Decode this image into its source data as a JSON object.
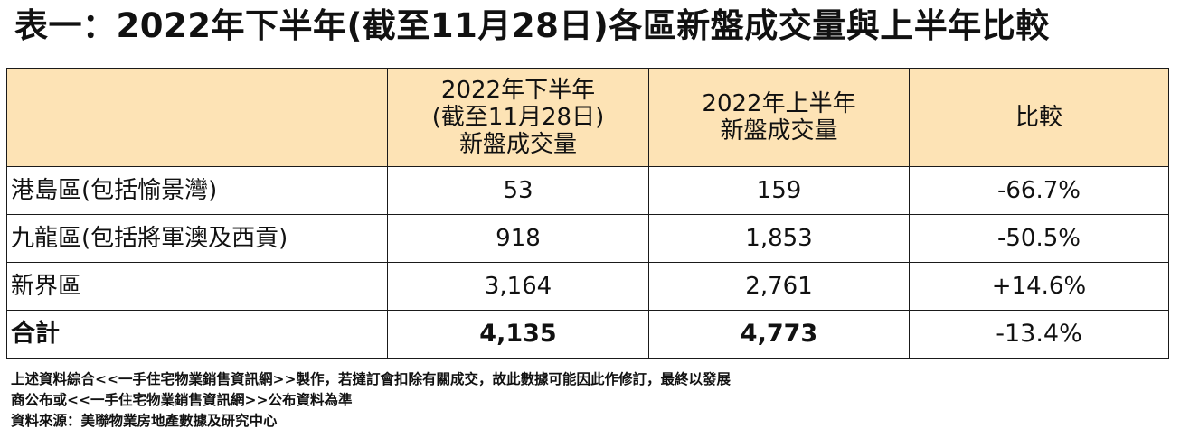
{
  "title": "表一：2022年下半年(截至11月28日)各區新盤成交量與上半年比較",
  "table": {
    "headers": {
      "col1": "",
      "col2": [
        "2022年下半年",
        "(截至11月28日)",
        "新盤成交量"
      ],
      "col3": [
        "2022年上半年",
        "新盤成交量"
      ],
      "col4": "比較"
    },
    "rows": [
      {
        "region": "港島區(包括愉景灣)",
        "h2": "53",
        "h1": "159",
        "change": "-66.7%"
      },
      {
        "region": "九龍區(包括將軍澳及西貢)",
        "h2": "918",
        "h1": "1,853",
        "change": "-50.5%"
      },
      {
        "region": "新界區",
        "h2": "3,164",
        "h1": "2,761",
        "change": "+14.6%"
      }
    ],
    "total": {
      "region": "合計",
      "h2": "4,135",
      "h1": "4,773",
      "change": "-13.4%"
    }
  },
  "notes": [
    "上述資料綜合<<一手住宅物業銷售資訊網>>製作，若撻訂會扣除有關成交，故此數據可能因此作修訂，最終以發展",
    "商公布或<<一手住宅物業銷售資訊網>>公布資料為準",
    "資料來源：美聯物業房地產數據及研究中心"
  ]
}
